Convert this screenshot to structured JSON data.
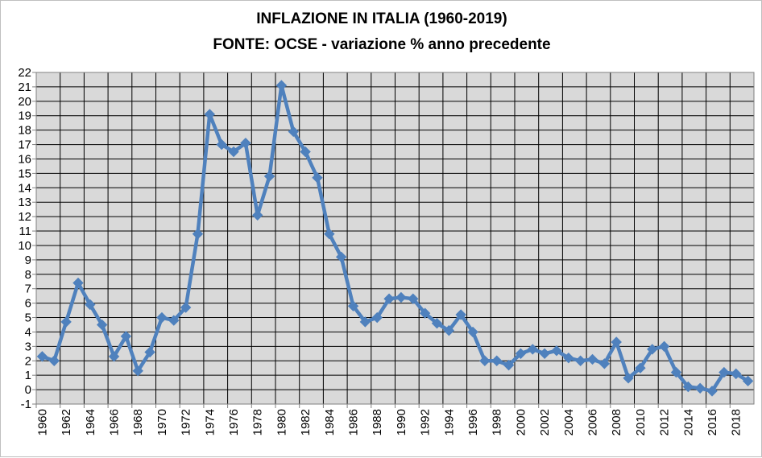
{
  "chart_data": {
    "type": "line",
    "title": "INFLAZIONE IN ITALIA (1960-2019)",
    "subtitle": "FONTE: OCSE - variazione % anno precedente",
    "xlabel": "",
    "ylabel": "",
    "ylim": [
      -1,
      22
    ],
    "xlim": [
      1960,
      2019
    ],
    "y_ticks": [
      -1,
      0,
      1,
      2,
      3,
      4,
      5,
      6,
      7,
      8,
      9,
      10,
      11,
      12,
      13,
      14,
      15,
      16,
      17,
      18,
      19,
      20,
      21,
      22
    ],
    "x_ticks": [
      1960,
      1962,
      1964,
      1966,
      1968,
      1970,
      1972,
      1974,
      1976,
      1978,
      1980,
      1982,
      1984,
      1986,
      1988,
      1990,
      1992,
      1994,
      1996,
      1998,
      2000,
      2002,
      2004,
      2006,
      2008,
      2010,
      2012,
      2014,
      2016,
      2018
    ],
    "grid": true,
    "legend": "none",
    "series_color": "#4f81bd",
    "plot_background": "#d9d9d9",
    "x": [
      1960,
      1961,
      1962,
      1963,
      1964,
      1965,
      1966,
      1967,
      1968,
      1969,
      1970,
      1971,
      1972,
      1973,
      1974,
      1975,
      1976,
      1977,
      1978,
      1979,
      1980,
      1981,
      1982,
      1983,
      1984,
      1985,
      1986,
      1987,
      1988,
      1989,
      1990,
      1991,
      1992,
      1993,
      1994,
      1995,
      1996,
      1997,
      1998,
      1999,
      2000,
      2001,
      2002,
      2003,
      2004,
      2005,
      2006,
      2007,
      2008,
      2009,
      2010,
      2011,
      2012,
      2013,
      2014,
      2015,
      2016,
      2017,
      2018,
      2019
    ],
    "series": [
      {
        "values": [
          2.3,
          2.0,
          4.7,
          7.4,
          5.9,
          4.5,
          2.3,
          3.7,
          1.3,
          2.6,
          5.0,
          4.8,
          5.7,
          10.8,
          19.1,
          17.0,
          16.5,
          17.1,
          12.1,
          14.8,
          21.1,
          17.9,
          16.5,
          14.7,
          10.8,
          9.2,
          5.8,
          4.7,
          5.0,
          6.3,
          6.4,
          6.3,
          5.3,
          4.6,
          4.1,
          5.2,
          4.0,
          2.0,
          2.0,
          1.7,
          2.5,
          2.8,
          2.5,
          2.7,
          2.2,
          2.0,
          2.1,
          1.8,
          3.3,
          0.8,
          1.5,
          2.8,
          3.0,
          1.2,
          0.2,
          0.1,
          -0.1,
          1.2,
          1.1,
          0.6
        ]
      }
    ]
  }
}
